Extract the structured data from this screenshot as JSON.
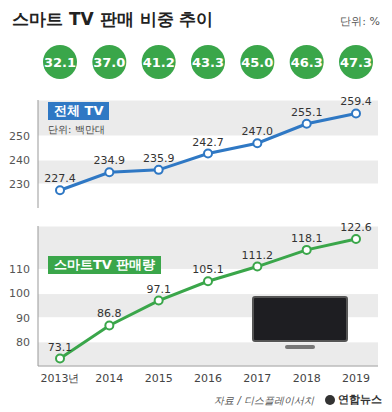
{
  "source": "자료 / 디스플레이서치",
  "credit": "연합뉴스",
  "chart_data": [
    {
      "type": "line",
      "title": "스마트 TV 판매 비중 추이",
      "subtitle": "단위: %",
      "categories": [
        "2013년",
        "2014",
        "2015",
        "2016",
        "2017",
        "2018",
        "2019"
      ],
      "values": [
        32.1,
        37.0,
        41.2,
        43.3,
        45.0,
        46.3,
        47.3
      ],
      "value_labels": [
        "32.1",
        "37.0",
        "41.2",
        "43.3",
        "45.0",
        "46.3",
        "47.3"
      ],
      "color": "#3aa64a",
      "marker": "circle",
      "data_labels": true,
      "tick_labels": false
    },
    {
      "type": "line",
      "annotation": "전체 TV",
      "subtitle": "단위: 백만대",
      "categories": [
        "2013년",
        "2014",
        "2015",
        "2016",
        "2017",
        "2018",
        "2019"
      ],
      "values": [
        227.4,
        234.9,
        235.9,
        242.7,
        247.0,
        255.1,
        259.4
      ],
      "value_labels": [
        "227.4",
        "234.9",
        "235.9",
        "242.7",
        "247.0",
        "255.1",
        "259.4"
      ],
      "color": "#2f78c4",
      "marker": "circle",
      "ylim": [
        220,
        265
      ],
      "yticks": [
        230,
        240,
        250
      ],
      "grid": true,
      "data_labels": true,
      "tick_labels": "y"
    },
    {
      "type": "line",
      "annotation": "스마트TV 판매량",
      "categories": [
        "2013년",
        "2014",
        "2015",
        "2016",
        "2017",
        "2018",
        "2019"
      ],
      "values": [
        73.1,
        86.8,
        97.1,
        105.1,
        111.2,
        118.1,
        122.6
      ],
      "color": "#3aa64a",
      "marker": "circle",
      "ylim": [
        70,
        128
      ],
      "yticks": [
        80,
        90,
        100,
        110
      ],
      "grid": true,
      "data_labels": true,
      "tick_labels": true
    }
  ]
}
